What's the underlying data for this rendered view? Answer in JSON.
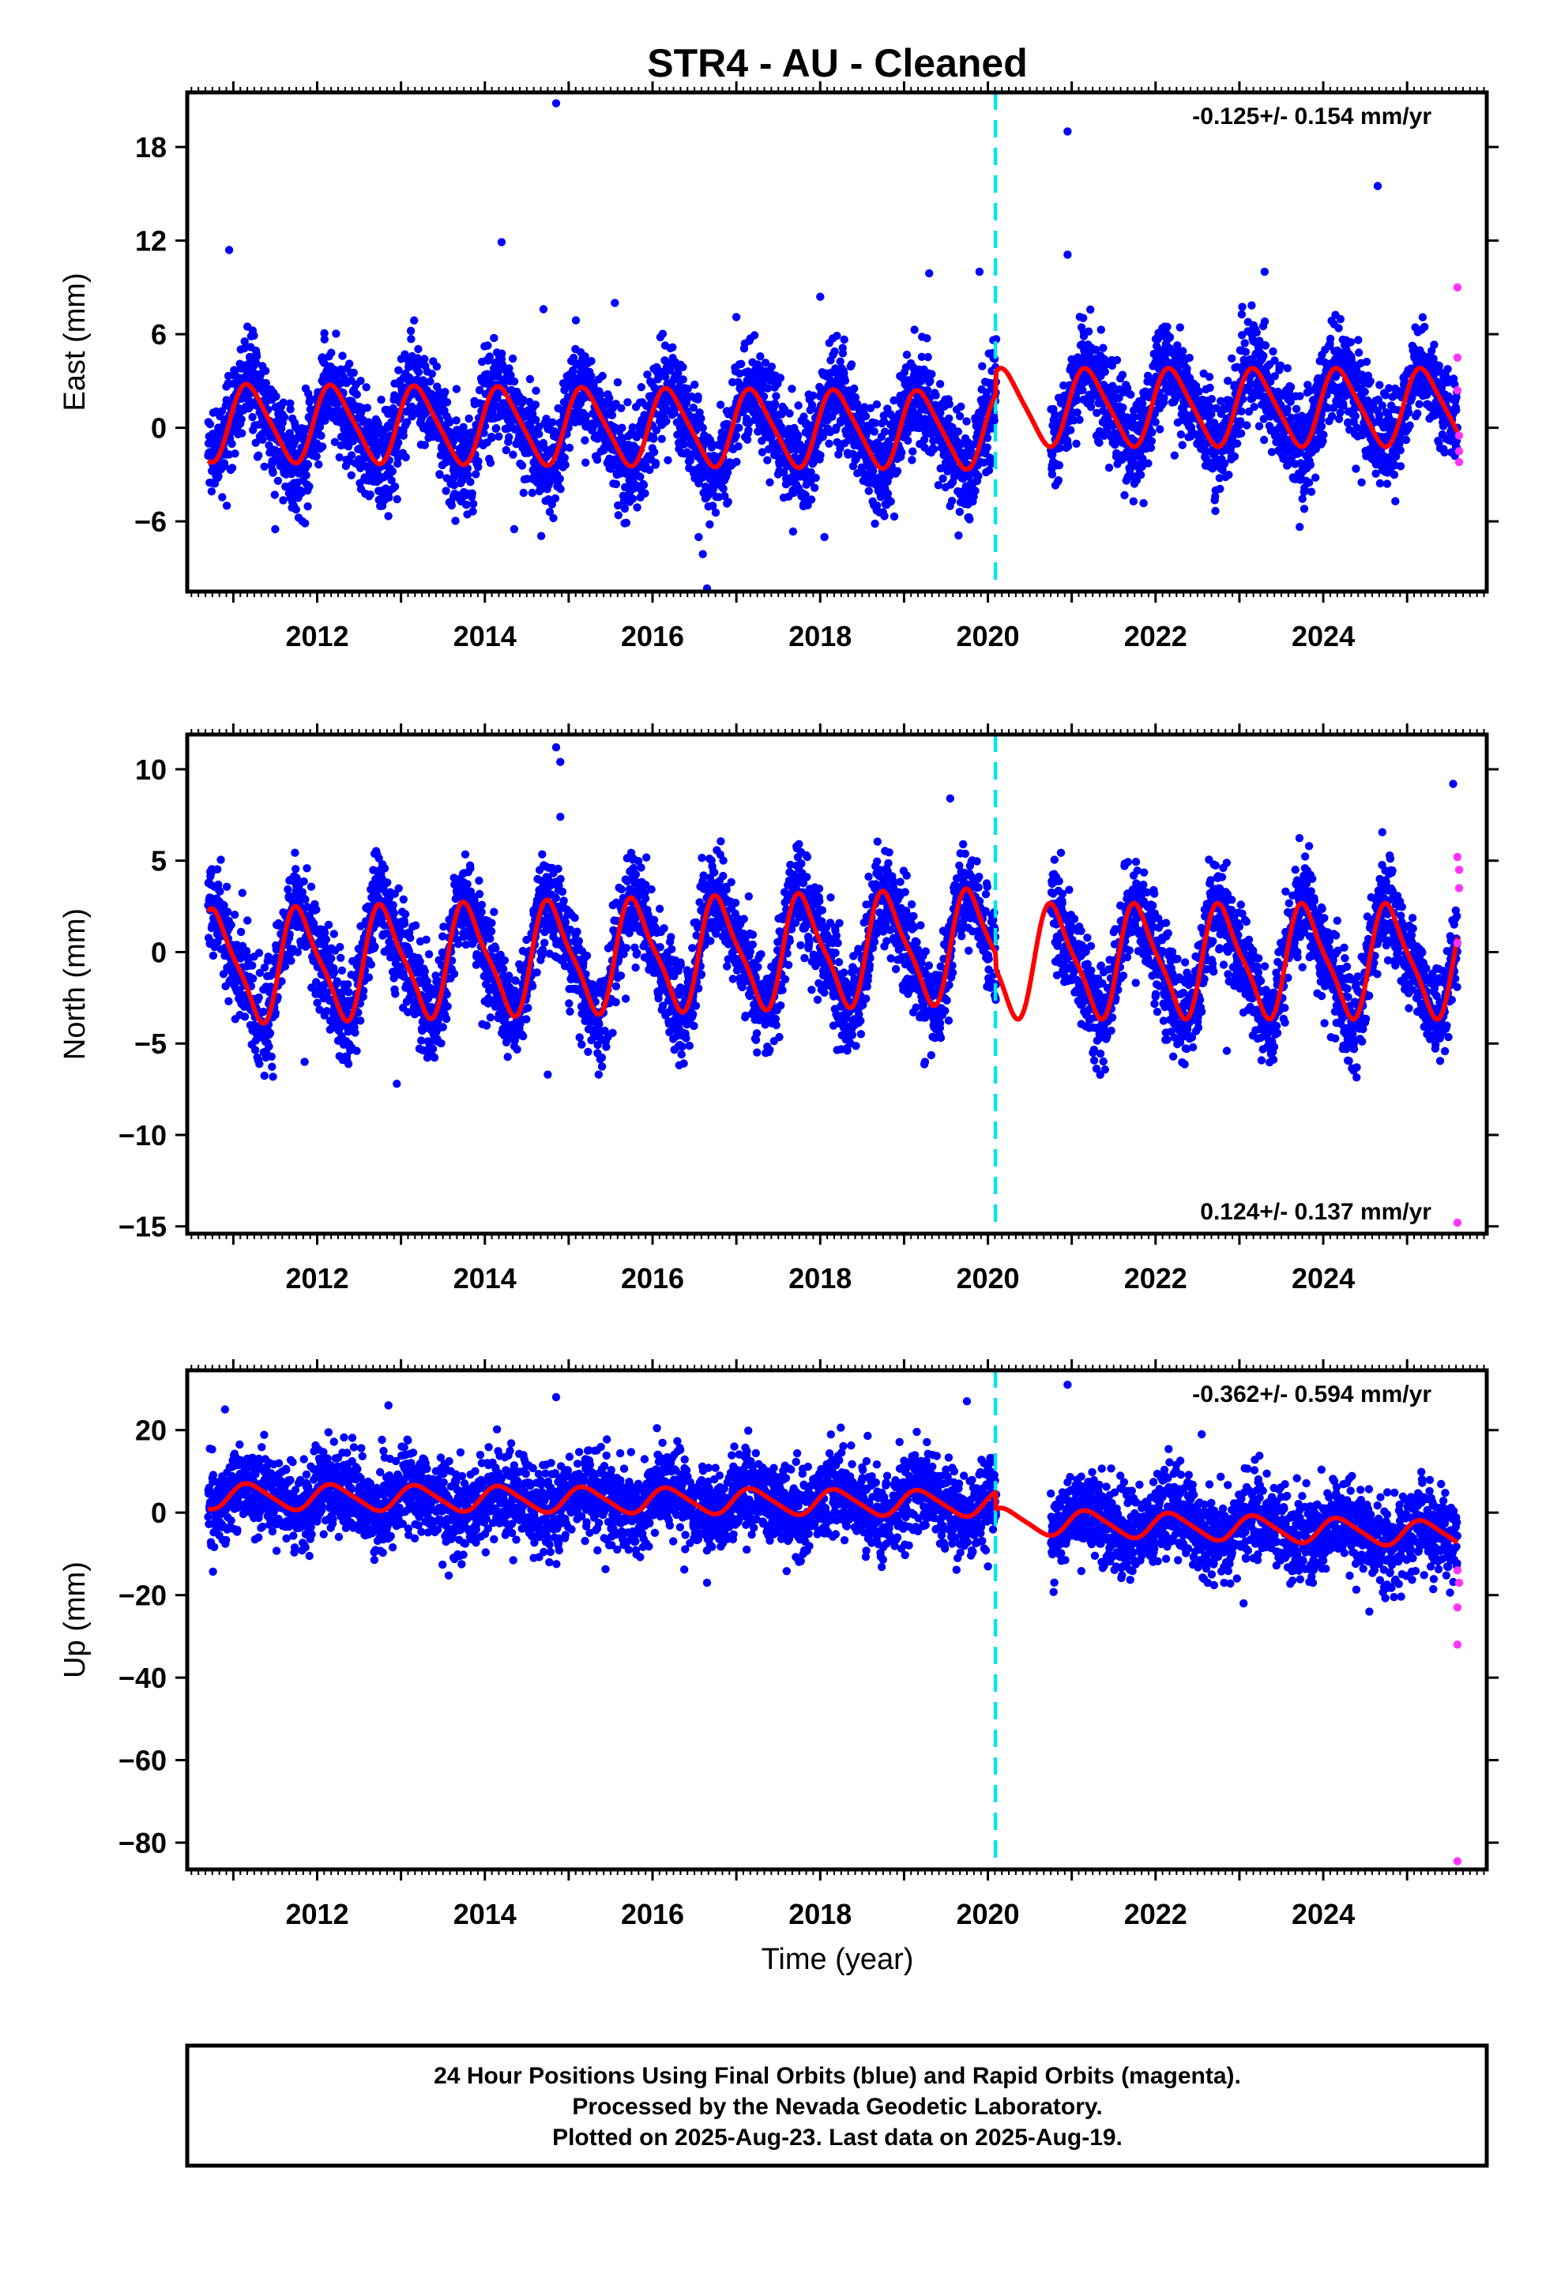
{
  "title": "STR4  - AU - Cleaned",
  "xlabel": "Time (year)",
  "colors": {
    "final": "#0000ff",
    "rapid": "#ff33ff",
    "model": "#ff0000",
    "step": "#00e5ee",
    "frame": "#000000"
  },
  "footer": {
    "line1": "24 Hour Positions Using Final Orbits (blue) and Rapid Orbits (magenta).",
    "line2": "Processed by the Nevada Geodetic Laboratory.",
    "line3": "Plotted on 2025-Aug-23. Last data on 2025-Aug-19."
  },
  "chart_data": [
    {
      "type": "scatter",
      "component": "East",
      "ylabel": "East (mm)",
      "rate": "-0.125+/- 0.154 mm/yr",
      "rate_position": "top-right",
      "xlim": [
        2010.45,
        2025.95
      ],
      "ylim": [
        -10.5,
        21.5
      ],
      "yticks": [
        -6,
        0,
        6,
        12,
        18
      ],
      "ytick_labels": [
        "−6",
        "0",
        "6",
        "12",
        "18"
      ],
      "xticks": [
        2012,
        2014,
        2016,
        2018,
        2020,
        2022,
        2024
      ],
      "data_start": 2010.7,
      "data_gap": [
        2020.1,
        2020.75
      ],
      "data_end": 2025.6,
      "equipment_change": 2020.09,
      "model": {
        "offset": 0.3,
        "annual_amp": 2.4,
        "phase_year": 2010.95,
        "semi_annual_amp": 0.4,
        "pre_step_trend": -0.05,
        "post_step_offset": 1.0
      },
      "scatter_sd": 1.6,
      "outliers": [
        [
          2010.95,
          11.4
        ],
        [
          2014.2,
          11.9
        ],
        [
          2014.85,
          20.8
        ],
        [
          2014.7,
          7.6
        ],
        [
          2015.55,
          8.0
        ],
        [
          2017.0,
          7.1
        ],
        [
          2018.0,
          8.4
        ],
        [
          2019.3,
          9.9
        ],
        [
          2019.9,
          10.0
        ],
        [
          2020.95,
          19.0
        ],
        [
          2020.95,
          11.1
        ],
        [
          2023.3,
          10.0
        ],
        [
          2024.65,
          15.5
        ],
        [
          2016.55,
          -7.0
        ],
        [
          2016.6,
          -8.1
        ],
        [
          2016.65,
          -10.3
        ],
        [
          2011.5,
          -6.5
        ],
        [
          2014.35,
          -6.5
        ],
        [
          2018.05,
          -7.0
        ],
        [
          2019.65,
          -6.9
        ]
      ],
      "rapid_points": [
        [
          2025.6,
          9.0
        ],
        [
          2025.6,
          4.5
        ],
        [
          2025.6,
          2.4
        ],
        [
          2025.62,
          -0.5
        ],
        [
          2025.62,
          -1.5
        ],
        [
          2025.62,
          -2.2
        ]
      ]
    },
    {
      "type": "scatter",
      "component": "North",
      "ylabel": "North (mm)",
      "rate": "0.124+/- 0.137 mm/yr",
      "rate_position": "bottom-right",
      "xlim": [
        2010.45,
        2025.95
      ],
      "ylim": [
        -15.4,
        11.9
      ],
      "yticks": [
        -15,
        -10,
        -5,
        0,
        5,
        10
      ],
      "ytick_labels": [
        "−15",
        "−10",
        "−5",
        "0",
        "5",
        "10"
      ],
      "xticks": [
        2012,
        2014,
        2016,
        2018,
        2020,
        2022,
        2024
      ],
      "data_start": 2010.7,
      "data_gap": [
        2020.1,
        2020.75
      ],
      "data_end": 2025.6,
      "equipment_change": 2020.09,
      "model": {
        "offset": -0.8,
        "annual_amp": 2.9,
        "phase_year": 2010.55,
        "semi_annual_amp": 0.7,
        "pre_step_trend": 0.12,
        "post_step_offset": 0.3
      },
      "scatter_sd": 1.3,
      "outliers": [
        [
          2014.85,
          11.2
        ],
        [
          2014.9,
          10.4
        ],
        [
          2014.9,
          7.4
        ],
        [
          2019.55,
          8.4
        ],
        [
          2025.55,
          9.2
        ],
        [
          2012.95,
          -7.2
        ],
        [
          2014.75,
          -6.7
        ],
        [
          2019.25,
          -6.0
        ],
        [
          2022.85,
          -5.4
        ],
        [
          2011.85,
          -6.0
        ]
      ],
      "rapid_points": [
        [
          2025.6,
          5.2
        ],
        [
          2025.62,
          4.5
        ],
        [
          2025.62,
          3.5
        ],
        [
          2025.6,
          0.5
        ],
        [
          2025.6,
          -14.8
        ]
      ]
    },
    {
      "type": "scatter",
      "component": "Up",
      "ylabel": "Up (mm)",
      "rate": "-0.362+/- 0.594 mm/yr",
      "rate_position": "top-right",
      "xlim": [
        2010.45,
        2025.95
      ],
      "ylim": [
        -86.5,
        34.5
      ],
      "yticks": [
        -80,
        -60,
        -40,
        -20,
        0,
        20
      ],
      "ytick_labels": [
        "−80",
        "−60",
        "−40",
        "−20",
        "0",
        "20"
      ],
      "xticks": [
        2012,
        2014,
        2016,
        2018,
        2020,
        2022,
        2024
      ],
      "data_start": 2010.7,
      "data_gap": [
        2020.1,
        2020.75
      ],
      "data_end": 2025.6,
      "equipment_change": 2020.09,
      "model": {
        "offset": 4.0,
        "annual_amp": 3.0,
        "phase_year": 2010.95,
        "semi_annual_amp": 0.5,
        "pre_step_trend": -0.2,
        "post_step_offset": -6.0,
        "post_trend": -0.6
      },
      "scatter_sd": 5.0,
      "outliers": [
        [
          2010.9,
          25.0
        ],
        [
          2012.85,
          26.0
        ],
        [
          2014.85,
          28.0
        ],
        [
          2019.75,
          27.0
        ],
        [
          2020.95,
          31.0
        ],
        [
          2022.55,
          19.0
        ],
        [
          2016.65,
          -17.0
        ],
        [
          2023.05,
          -22.0
        ],
        [
          2024.55,
          -24.0
        ]
      ],
      "rapid_points": [
        [
          2025.6,
          -14.0
        ],
        [
          2025.62,
          -17.0
        ],
        [
          2025.6,
          -23.0
        ],
        [
          2025.6,
          -32.0
        ],
        [
          2025.6,
          -84.5
        ]
      ]
    }
  ]
}
